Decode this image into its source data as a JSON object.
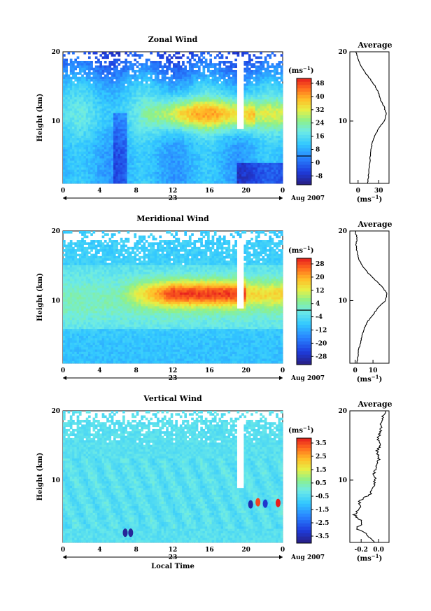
{
  "chart_data": [
    {
      "type": "heatmap",
      "title": "Zonal Wind",
      "ylabel": "Height (km)",
      "yticks": [
        "20",
        "10"
      ],
      "xticks": [
        "0",
        "4",
        "8",
        "12",
        "16",
        "20",
        "0"
      ],
      "day_label": "23",
      "date_label": "Aug 2007",
      "xlim": [
        0,
        24
      ],
      "ylim": [
        1,
        20
      ],
      "unit_label": "(ms",
      "unit_sup": "−1",
      "colorbar_ticks": [
        "48",
        "40",
        "32",
        "24",
        "16",
        "8",
        "0",
        "-8"
      ],
      "colorbar_range": [
        -12,
        52
      ],
      "field": {
        "kind": "zonal",
        "core_height_km": 11,
        "core_time_h": [
          10,
          20
        ],
        "core_value": 40,
        "data_gap_time_h": 19.3
      },
      "average": {
        "title": "Average",
        "xticks": [
          "0",
          "30"
        ],
        "xlim": [
          -12,
          45
        ],
        "unit_label": "(ms",
        "unit_sup": "−1",
        "height_km": [
          1,
          2,
          3,
          4,
          5,
          6,
          7,
          8,
          9,
          10,
          11,
          12,
          13,
          14,
          15,
          16,
          17,
          18,
          19,
          20
        ],
        "values": [
          14,
          15,
          16,
          17,
          18,
          19,
          21,
          25,
          30,
          38,
          41,
          38,
          33,
          30,
          25,
          18,
          10,
          4,
          0,
          -3
        ]
      }
    },
    {
      "type": "heatmap",
      "title": "Meridional Wind",
      "ylabel": "Height (km)",
      "yticks": [
        "20",
        "10"
      ],
      "xticks": [
        "0",
        "4",
        "8",
        "12",
        "16",
        "20",
        "0"
      ],
      "day_label": "23",
      "date_label": "Aug 2007",
      "xlim": [
        0,
        24
      ],
      "ylim": [
        1,
        20
      ],
      "unit_label": "(ms",
      "unit_sup": "−1",
      "colorbar_ticks": [
        "28",
        "20",
        "12",
        "4",
        "-4",
        "-12",
        "-20",
        "-28"
      ],
      "colorbar_range": [
        -30,
        30
      ],
      "field": {
        "kind": "meridional",
        "core_height_km": 11,
        "core_time_h": [
          10,
          19
        ],
        "core_value": 24,
        "data_gap_time_h": 19.3
      },
      "average": {
        "title": "Average",
        "xticks": [
          "0",
          "10"
        ],
        "xlim": [
          -3,
          19
        ],
        "unit_label": "(ms",
        "unit_sup": "−1",
        "height_km": [
          1,
          2,
          3,
          4,
          5,
          6,
          7,
          8,
          9,
          10,
          11,
          12,
          13,
          14,
          15,
          16,
          17,
          18,
          19,
          20
        ],
        "values": [
          1,
          1.5,
          2,
          3,
          4,
          5,
          7,
          10,
          13,
          17,
          18,
          15,
          11,
          7,
          4,
          2,
          1,
          0.5,
          1,
          0
        ]
      }
    },
    {
      "type": "heatmap",
      "title": "Vertical Wind",
      "ylabel": "Height (km)",
      "yticks": [
        "20",
        "10"
      ],
      "xticks": [
        "0",
        "4",
        "8",
        "12",
        "16",
        "20",
        "0"
      ],
      "day_label": "23",
      "date_label": "Aug 2007",
      "xlabel": "Local Time",
      "xlim": [
        0,
        24
      ],
      "ylim": [
        1,
        20
      ],
      "unit_label": "(ms",
      "unit_sup": "−1",
      "colorbar_ticks": [
        "3.5",
        "2.5",
        "1.5",
        "0.5",
        "-0.5",
        "-1.5",
        "-2.5",
        "-3.5"
      ],
      "colorbar_range": [
        -4,
        4
      ],
      "field": {
        "kind": "vertical",
        "core_height_km": 8,
        "core_time_h": [
          18,
          24
        ],
        "core_value": 0,
        "data_gap_time_h": 19.3
      },
      "average": {
        "title": "Average",
        "xticks": [
          "-0.2",
          "0.0"
        ],
        "xlim": [
          -0.33,
          0.12
        ],
        "unit_label": "(ms",
        "unit_sup": "−1",
        "height_km": [
          1,
          2,
          3,
          4,
          5,
          6,
          7,
          8,
          9,
          10,
          11,
          12,
          13,
          14,
          15,
          16,
          17,
          18,
          19,
          20
        ],
        "values": [
          -0.05,
          -0.12,
          -0.25,
          -0.18,
          -0.28,
          -0.2,
          -0.22,
          -0.1,
          -0.06,
          -0.04,
          -0.05,
          -0.02,
          0,
          -0.02,
          0.01,
          -0.01,
          0.02,
          0.03,
          0.05,
          0.07
        ]
      }
    }
  ]
}
